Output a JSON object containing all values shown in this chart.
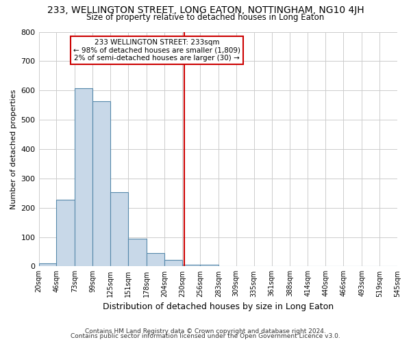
{
  "title": "233, WELLINGTON STREET, LONG EATON, NOTTINGHAM, NG10 4JH",
  "subtitle": "Size of property relative to detached houses in Long Eaton",
  "xlabel": "Distribution of detached houses by size in Long Eaton",
  "ylabel": "Number of detached properties",
  "bar_color": "#c8d8e8",
  "bar_edge_color": "#5588aa",
  "bin_edges": [
    20,
    46,
    73,
    99,
    125,
    151,
    178,
    204,
    230,
    256,
    283,
    309,
    335,
    361,
    388,
    414,
    440,
    466,
    493,
    519,
    545
  ],
  "bin_values": [
    10,
    228,
    608,
    563,
    254,
    95,
    46,
    22,
    6,
    5,
    2,
    0,
    0,
    0,
    0,
    0,
    0,
    0,
    0,
    0
  ],
  "tick_labels": [
    "20sqm",
    "46sqm",
    "73sqm",
    "99sqm",
    "125sqm",
    "151sqm",
    "178sqm",
    "204sqm",
    "230sqm",
    "256sqm",
    "283sqm",
    "309sqm",
    "335sqm",
    "361sqm",
    "388sqm",
    "414sqm",
    "440sqm",
    "466sqm",
    "493sqm",
    "519sqm",
    "545sqm"
  ],
  "property_value": 233,
  "vline_color": "#cc0000",
  "annotation_title": "233 WELLINGTON STREET: 233sqm",
  "annotation_line1": "← 98% of detached houses are smaller (1,809)",
  "annotation_line2": "2% of semi-detached houses are larger (30) →",
  "annotation_box_edge_color": "#cc0000",
  "ylim": [
    0,
    800
  ],
  "yticks": [
    0,
    100,
    200,
    300,
    400,
    500,
    600,
    700,
    800
  ],
  "footer_line1": "Contains HM Land Registry data © Crown copyright and database right 2024.",
  "footer_line2": "Contains public sector information licensed under the Open Government Licence v3.0."
}
